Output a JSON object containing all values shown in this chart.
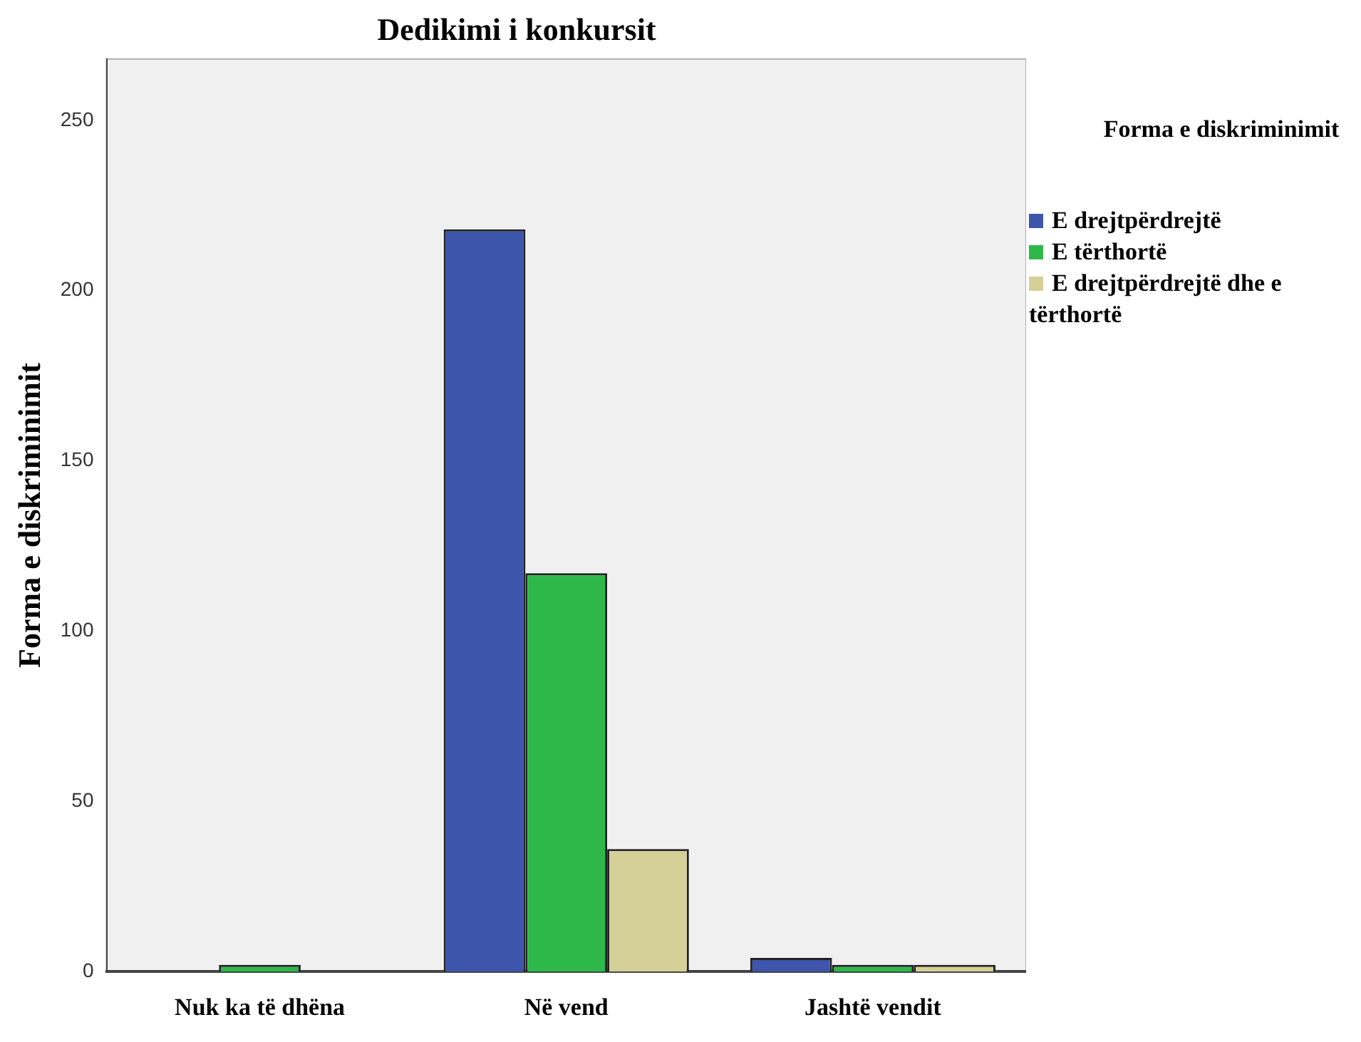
{
  "chart_data": {
    "type": "bar",
    "title": "Dedikimi i konkursit",
    "ylabel": "Forma e diskriminimit",
    "legend_title": "Forma e diskriminimit",
    "categories": [
      "Nuk ka të dhëna",
      "Në vend",
      "Jashtë vendit"
    ],
    "series": [
      {
        "name": "E drejtpërdrejtë",
        "color": "#3d55ab",
        "values": [
          0,
          218,
          4
        ]
      },
      {
        "name": "E tërthortë",
        "color": "#2eb84a",
        "values": [
          2,
          117,
          2
        ]
      },
      {
        "name": "E drejtpërdrejtë dhe e tërthortë",
        "color": "#d5cf98",
        "values": [
          0,
          36,
          2
        ]
      }
    ],
    "ylim": [
      0,
      268
    ],
    "yticks": [
      0,
      50,
      100,
      150,
      200,
      250
    ],
    "grid": false,
    "legend": "top right"
  }
}
